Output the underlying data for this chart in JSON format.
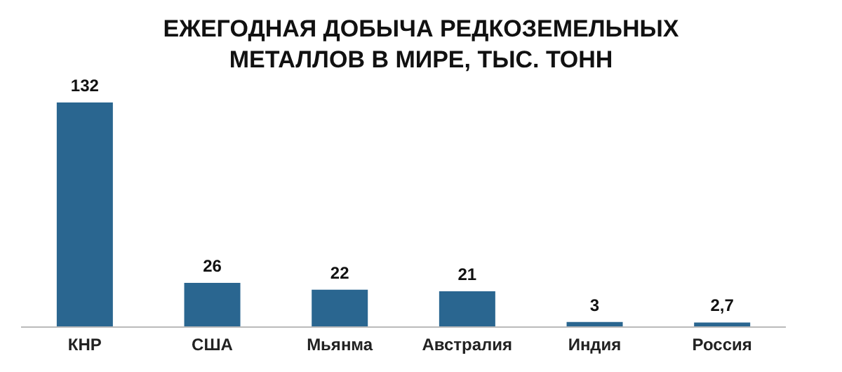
{
  "chart_data": {
    "type": "bar",
    "title": "ЕЖЕГОДНАЯ ДОБЫЧА РЕДКОЗЕМЕЛЬНЫХ МЕТАЛЛОВ В МИРЕ, ТЫС. ТОНН",
    "categories": [
      "КНР",
      "США",
      "Мьянма",
      "Австралия",
      "Индия",
      "Россия"
    ],
    "values": [
      132,
      26,
      22,
      21,
      3,
      2.7
    ],
    "value_labels": [
      "132",
      "26",
      "22",
      "21",
      "3",
      "2,7"
    ],
    "color": "#2a6690"
  }
}
